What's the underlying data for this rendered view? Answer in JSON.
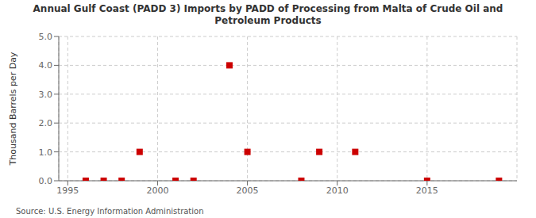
{
  "chart_data": {
    "type": "scatter",
    "title": "Annual Gulf Coast (PADD 3) Imports by PADD of Processing from Malta of Crude Oil and\nPetroleum Products",
    "ylabel": "Thousand Barrels per Day",
    "annotations": [
      "Source: U.S. Energy Information Administration"
    ],
    "x": [
      1996,
      1997,
      1998,
      1999,
      2001,
      2002,
      2004,
      2005,
      2008,
      2009,
      2011,
      2015,
      2019
    ],
    "values": [
      0.0,
      0.0,
      0.0,
      1.0,
      0.0,
      0.0,
      4.0,
      1.0,
      0.0,
      1.0,
      1.0,
      0.0,
      0.0
    ],
    "color": "#cc0000",
    "marker": "square",
    "xlim": [
      1994.5,
      2020
    ],
    "ylim": [
      0.0,
      5.0
    ],
    "xticks": [
      1995,
      2000,
      2005,
      2010,
      2015
    ],
    "yticks": [
      {
        "value": 0.0,
        "label": "0.0"
      },
      {
        "value": 1.0,
        "label": "1.0"
      },
      {
        "value": 2.0,
        "label": "2.0"
      },
      {
        "value": 3.0,
        "label": "3.0"
      },
      {
        "value": 4.0,
        "label": "4.0"
      },
      {
        "value": 5.0,
        "label": "5.0"
      }
    ],
    "grid": true
  }
}
